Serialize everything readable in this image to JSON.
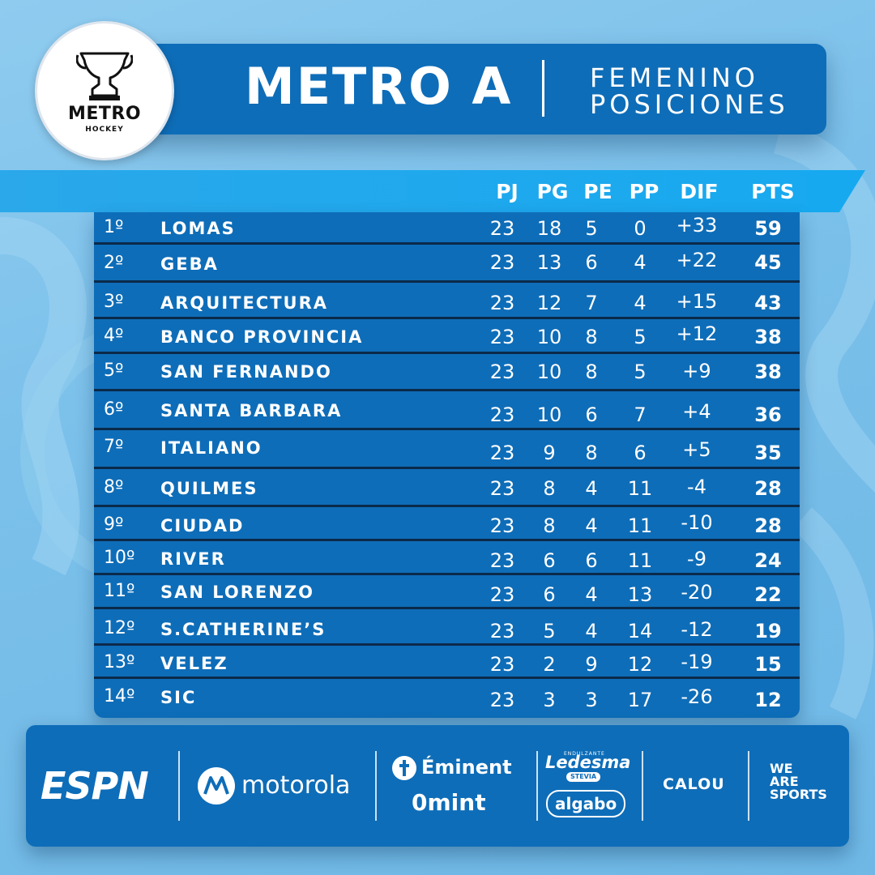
{
  "header": {
    "title": "METRO A",
    "subtitle_line1": "FEMENINO",
    "subtitle_line2": "POSICIONES",
    "logo_word": "METRO",
    "logo_sub": "HOCKEY"
  },
  "table": {
    "columns": [
      "PJ",
      "PG",
      "PE",
      "PP",
      "DIF",
      "PTS"
    ],
    "rows": [
      {
        "pos": "1º",
        "team": "LOMAS",
        "pj": "23",
        "pg": "18",
        "pe": "5",
        "pp": "0",
        "dif": "+33",
        "pts": "59"
      },
      {
        "pos": "2º",
        "team": "GEBA",
        "pj": "23",
        "pg": "13",
        "pe": "6",
        "pp": "4",
        "dif": "+22",
        "pts": "45"
      },
      {
        "pos": "3º",
        "team": "ARQUITECTURA",
        "pj": "23",
        "pg": "12",
        "pe": "7",
        "pp": "4",
        "dif": "+15",
        "pts": "43"
      },
      {
        "pos": "4º",
        "team": "BANCO PROVINCIA",
        "pj": "23",
        "pg": "10",
        "pe": "8",
        "pp": "5",
        "dif": "+12",
        "pts": "38"
      },
      {
        "pos": "5º",
        "team": "SAN FERNANDO",
        "pj": "23",
        "pg": "10",
        "pe": "8",
        "pp": "5",
        "dif": "+9",
        "pts": "38"
      },
      {
        "pos": "6º",
        "team": "SANTA BARBARA",
        "pj": "23",
        "pg": "10",
        "pe": "6",
        "pp": "7",
        "dif": "+4",
        "pts": "36"
      },
      {
        "pos": "7º",
        "team": "ITALIANO",
        "pj": "23",
        "pg": "9",
        "pe": "8",
        "pp": "6",
        "dif": "+5",
        "pts": "35"
      },
      {
        "pos": "8º",
        "team": "QUILMES",
        "pj": "23",
        "pg": "8",
        "pe": "4",
        "pp": "11",
        "dif": "-4",
        "pts": "28"
      },
      {
        "pos": "9º",
        "team": "CIUDAD",
        "pj": "23",
        "pg": "8",
        "pe": "4",
        "pp": "11",
        "dif": "-10",
        "pts": "28"
      },
      {
        "pos": "10º",
        "team": "RIVER",
        "pj": "23",
        "pg": "6",
        "pe": "6",
        "pp": "11",
        "dif": "-9",
        "pts": "24"
      },
      {
        "pos": "11º",
        "team": "SAN LORENZO",
        "pj": "23",
        "pg": "6",
        "pe": "4",
        "pp": "13",
        "dif": "-20",
        "pts": "22"
      },
      {
        "pos": "12º",
        "team": "S.CATHERINE’S",
        "pj": "23",
        "pg": "5",
        "pe": "4",
        "pp": "14",
        "dif": "-12",
        "pts": "19"
      },
      {
        "pos": "13º",
        "team": "VELEZ",
        "pj": "23",
        "pg": "2",
        "pe": "9",
        "pp": "12",
        "dif": "-19",
        "pts": "15"
      },
      {
        "pos": "14º",
        "team": "SIC",
        "pj": "23",
        "pg": "3",
        "pe": "3",
        "pp": "17",
        "dif": "-26",
        "pts": "12"
      }
    ]
  },
  "sponsors": {
    "espn": "ESPN",
    "motorola": "motorola",
    "eminent": "Éminent",
    "omint": "0mint",
    "ledesma_tag": "ENDULZANTE",
    "ledesma": "Ledesma",
    "stevia": "STEVIA",
    "algabo": "algabo",
    "calou": "CALOU",
    "wearesports_1": "WE",
    "wearesports_2": "ARE",
    "wearesports_3": "SPORTS"
  },
  "colors": {
    "panel": "#0e6db8",
    "head_band": "#16a9f0",
    "row_line": "#0b2a4a",
    "background": "#7ac0ea"
  }
}
